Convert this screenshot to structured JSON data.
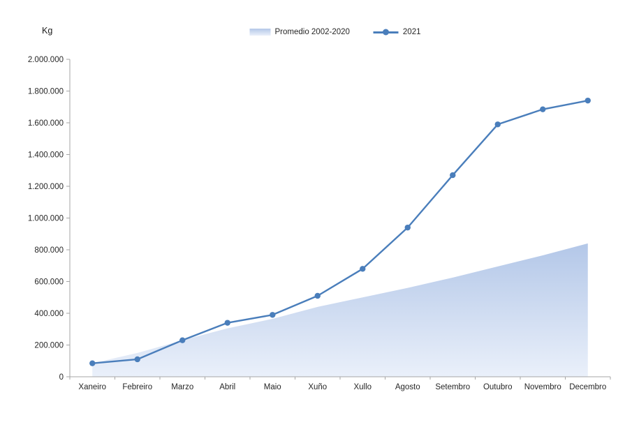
{
  "chart": {
    "unit_label": "Kg",
    "colors": {
      "line_2021": "#4a7ebb",
      "area_top": "#b3c7e8",
      "area_bottom": "#eaf0fa",
      "axis": "#a6a6a6",
      "text": "#262626"
    }
  },
  "chart_data": {
    "type": "line",
    "title": "",
    "categories": [
      "Xaneiro",
      "Febreiro",
      "Marzo",
      "Abril",
      "Maio",
      "Xuño",
      "Xullo",
      "Agosto",
      "Setembro",
      "Outubro",
      "Novembro",
      "Decembro"
    ],
    "series": [
      {
        "name": "Promedio 2002-2020",
        "type": "area",
        "values": [
          85000,
          150000,
          230000,
          305000,
          365000,
          440000,
          500000,
          560000,
          625000,
          695000,
          765000,
          840000
        ]
      },
      {
        "name": "2021",
        "type": "line",
        "values": [
          85000,
          110000,
          230000,
          340000,
          390000,
          510000,
          680000,
          940000,
          1270000,
          1590000,
          1685000,
          1740000
        ]
      }
    ],
    "xlabel": "",
    "ylabel": "Kg",
    "ylim": [
      0,
      2000000
    ],
    "ytick_interval": 200000,
    "ytick_labels": [
      "0",
      "200.000",
      "400.000",
      "600.000",
      "800.000",
      "1.000.000",
      "1.200.000",
      "1.400.000",
      "1.600.000",
      "1.800.000",
      "2.000.000"
    ],
    "grid": false,
    "legend_position": "top"
  }
}
